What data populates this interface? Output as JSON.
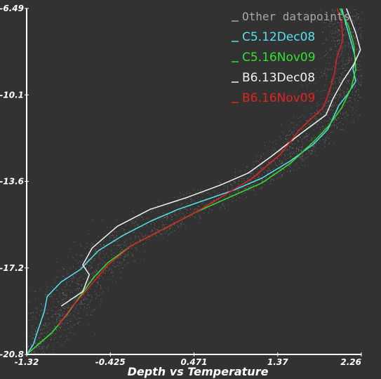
{
  "chart_data": {
    "type": "line",
    "title": "",
    "xlabel": "Depth vs Temperature",
    "ylabel": "",
    "xlim": [
      -1.32,
      2.26
    ],
    "ylim": [
      -20.8,
      -6.49
    ],
    "x_ticks": [
      "-1.32",
      "-0.425",
      "0.471",
      "1.37",
      "2.26"
    ],
    "y_ticks": [
      "-6.49",
      "-10.1",
      "-13.6",
      "-17.2",
      "-20.8"
    ],
    "legend_position": "top-right",
    "background_color": "#323232",
    "series": [
      {
        "name": "Other datapoints",
        "color": "#a6a6a6",
        "style": "scatter",
        "points": []
      },
      {
        "name": "C5.12Dec08",
        "color": "#56e1ef",
        "style": "line",
        "points": [
          [
            2.05,
            -6.49
          ],
          [
            2.1,
            -7.2
          ],
          [
            2.16,
            -8.0
          ],
          [
            2.2,
            -8.6
          ],
          [
            2.17,
            -9.0
          ],
          [
            2.2,
            -9.5
          ],
          [
            2.12,
            -10.0
          ],
          [
            2.02,
            -10.5
          ],
          [
            1.96,
            -11.0
          ],
          [
            1.9,
            -11.5
          ],
          [
            1.75,
            -12.1
          ],
          [
            1.5,
            -12.8
          ],
          [
            1.2,
            -13.5
          ],
          [
            0.9,
            -14.0
          ],
          [
            0.6,
            -14.4
          ],
          [
            0.3,
            -14.8
          ],
          [
            0.0,
            -15.3
          ],
          [
            -0.3,
            -15.9
          ],
          [
            -0.55,
            -16.5
          ],
          [
            -0.75,
            -17.3
          ],
          [
            -0.95,
            -17.8
          ],
          [
            -1.1,
            -18.4
          ],
          [
            -1.13,
            -19.0
          ],
          [
            -1.25,
            -20.4
          ],
          [
            -1.32,
            -20.8
          ]
        ]
      },
      {
        "name": "C5.16Nov09",
        "color": "#33e033",
        "style": "line",
        "points": [
          [
            2.03,
            -6.49
          ],
          [
            2.12,
            -7.2
          ],
          [
            2.18,
            -8.0
          ],
          [
            2.2,
            -9.0
          ],
          [
            2.15,
            -9.8
          ],
          [
            2.05,
            -10.6
          ],
          [
            1.9,
            -11.4
          ],
          [
            1.75,
            -12.0
          ],
          [
            1.5,
            -12.9
          ],
          [
            1.2,
            -13.7
          ],
          [
            0.85,
            -14.3
          ],
          [
            0.5,
            -14.9
          ],
          [
            0.15,
            -15.6
          ],
          [
            -0.2,
            -16.3
          ],
          [
            -0.45,
            -17.0
          ],
          [
            -0.6,
            -17.6
          ],
          [
            -0.75,
            -18.4
          ],
          [
            -0.9,
            -19.2
          ],
          [
            -1.05,
            -19.9
          ],
          [
            -1.32,
            -20.8
          ]
        ]
      },
      {
        "name": "B6.13Dec08",
        "color": "#f2f2f2",
        "style": "line",
        "points": [
          [
            2.1,
            -6.49
          ],
          [
            2.2,
            -7.5
          ],
          [
            2.25,
            -8.2
          ],
          [
            2.18,
            -8.8
          ],
          [
            2.06,
            -9.5
          ],
          [
            1.96,
            -10.2
          ],
          [
            1.88,
            -10.9
          ],
          [
            1.6,
            -11.7
          ],
          [
            1.3,
            -12.6
          ],
          [
            1.05,
            -13.3
          ],
          [
            0.75,
            -13.8
          ],
          [
            0.4,
            -14.3
          ],
          [
            0.0,
            -14.8
          ],
          [
            -0.35,
            -15.5
          ],
          [
            -0.62,
            -16.4
          ],
          [
            -0.72,
            -17.1
          ],
          [
            -0.65,
            -17.5
          ],
          [
            -0.72,
            -18.2
          ],
          [
            -0.95,
            -18.8
          ]
        ]
      },
      {
        "name": "B6.16Nov09",
        "color": "#e02424",
        "style": "line",
        "points": [
          [
            2.0,
            -6.49
          ],
          [
            2.05,
            -7.1
          ],
          [
            2.06,
            -7.8
          ],
          [
            2.0,
            -8.5
          ],
          [
            1.97,
            -9.2
          ],
          [
            1.92,
            -9.9
          ],
          [
            1.85,
            -10.6
          ],
          [
            1.6,
            -11.5
          ],
          [
            1.4,
            -12.5
          ],
          [
            1.1,
            -13.5
          ],
          [
            0.8,
            -14.2
          ],
          [
            0.5,
            -14.9
          ],
          [
            0.15,
            -15.6
          ],
          [
            -0.2,
            -16.3
          ],
          [
            -0.45,
            -17.1
          ],
          [
            -0.65,
            -18.0
          ],
          [
            -0.85,
            -18.9
          ],
          [
            -0.98,
            -19.6
          ]
        ]
      }
    ]
  }
}
